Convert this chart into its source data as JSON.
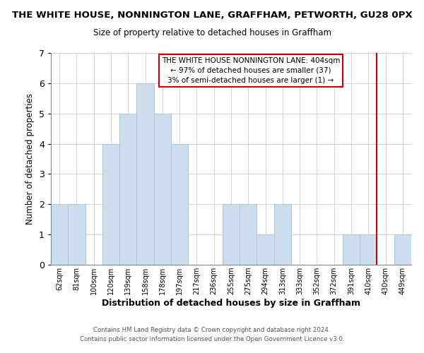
{
  "title": "THE WHITE HOUSE, NONNINGTON LANE, GRAFFHAM, PETWORTH, GU28 0PX",
  "subtitle": "Size of property relative to detached houses in Graffham",
  "xlabel": "Distribution of detached houses by size in Graffham",
  "ylabel": "Number of detached properties",
  "bar_color": "#ccdded",
  "bar_edgecolor": "#aac4d8",
  "categories": [
    "62sqm",
    "81sqm",
    "100sqm",
    "120sqm",
    "139sqm",
    "158sqm",
    "178sqm",
    "197sqm",
    "217sqm",
    "236sqm",
    "255sqm",
    "275sqm",
    "294sqm",
    "313sqm",
    "333sqm",
    "352sqm",
    "372sqm",
    "391sqm",
    "410sqm",
    "430sqm",
    "449sqm"
  ],
  "values": [
    2,
    2,
    0,
    4,
    5,
    6,
    5,
    4,
    0,
    0,
    2,
    2,
    1,
    2,
    0,
    0,
    0,
    1,
    1,
    0,
    1
  ],
  "ylim": [
    0,
    7
  ],
  "yticks": [
    0,
    1,
    2,
    3,
    4,
    5,
    6,
    7
  ],
  "vline_index": 18,
  "vline_color": "#cc0000",
  "annotation_title": "THE WHITE HOUSE NONNINGTON LANE: 404sqm",
  "annotation_line1": "← 97% of detached houses are smaller (37)",
  "annotation_line2": "3% of semi-detached houses are larger (1) →",
  "annotation_box_color": "#ffffff",
  "annotation_box_edgecolor": "#cc0000",
  "footer1": "Contains HM Land Registry data © Crown copyright and database right 2024.",
  "footer2": "Contains public sector information licensed under the Open Government Licence v3.0.",
  "background_color": "#ffffff",
  "grid_color": "#cccccc"
}
